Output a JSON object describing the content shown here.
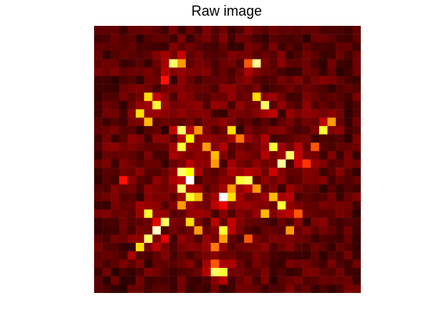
{
  "figure": {
    "title": "Raw image"
  },
  "image": {
    "colormap": "hot",
    "rows": 32,
    "cols": 32,
    "axes_visible": false,
    "background": "#000000"
  }
}
